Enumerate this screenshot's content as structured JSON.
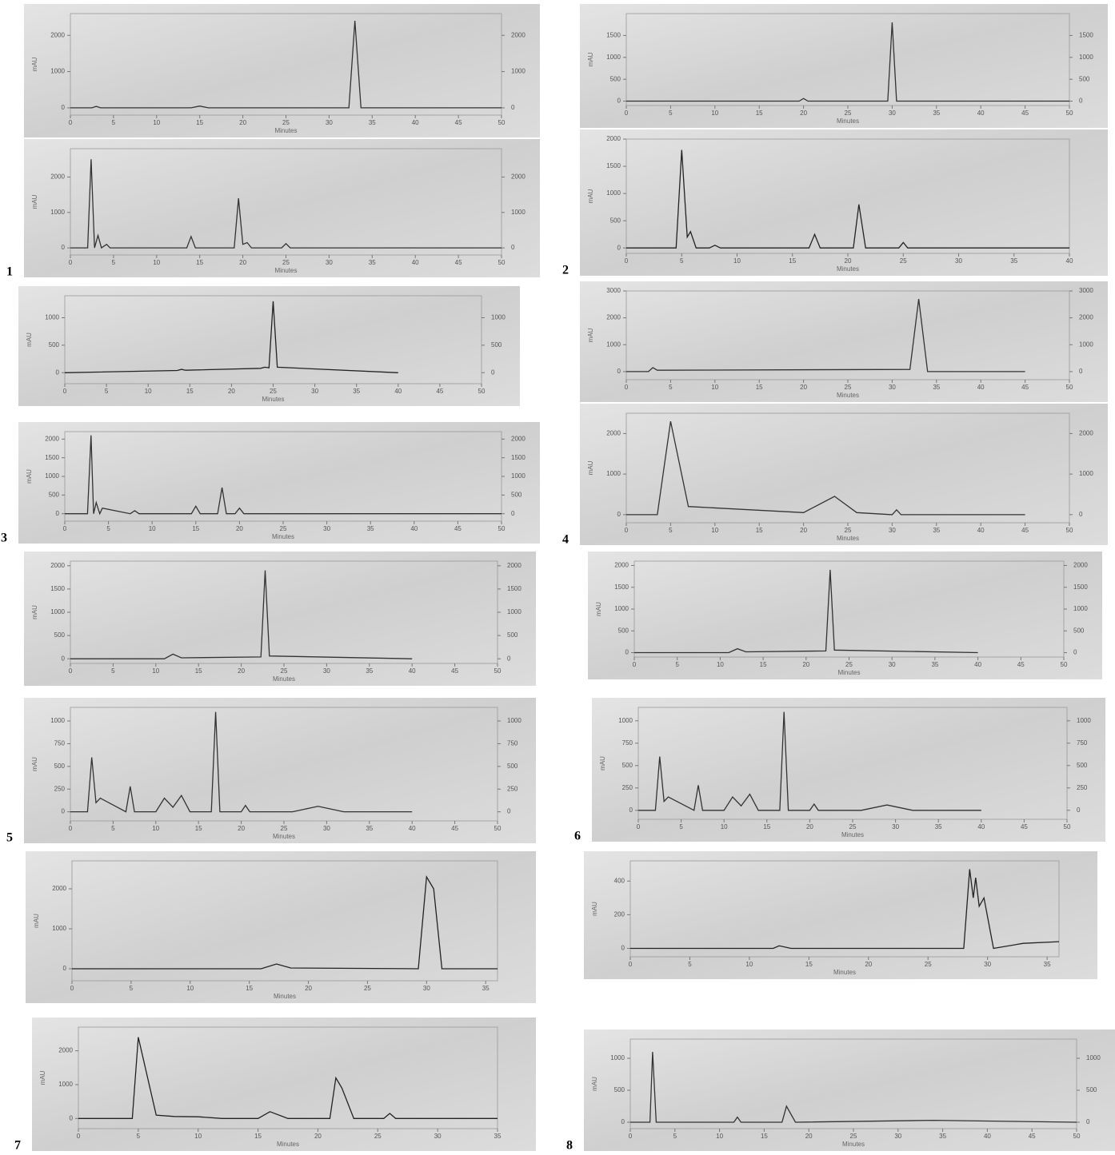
{
  "chart_data": [
    {
      "type": "line",
      "color": "#333",
      "right_axis": true,
      "xlabel": "Minutes",
      "ylabel": "mAU",
      "xlim": [
        0,
        50
      ],
      "xticks": [
        0,
        5,
        10,
        15,
        20,
        25,
        30,
        35,
        40,
        45,
        50
      ],
      "ylim": [
        -200,
        2600
      ],
      "yticks": [
        0,
        1000,
        2000
      ],
      "x": [
        0,
        2.5,
        3,
        3.5,
        14,
        15,
        16,
        32.3,
        33,
        33.7,
        50
      ],
      "values": [
        0,
        0,
        40,
        0,
        0,
        50,
        0,
        0,
        2400,
        0,
        0
      ]
    },
    {
      "type": "line",
      "color": "#333",
      "right_axis": true,
      "label": "1",
      "xlabel": "Minutes",
      "ylabel": "mAU",
      "xlim": [
        0,
        50
      ],
      "xticks": [
        0,
        5,
        10,
        15,
        20,
        25,
        30,
        35,
        40,
        45,
        50
      ],
      "ylim": [
        -200,
        2800
      ],
      "yticks": [
        0,
        1000,
        2000
      ],
      "x": [
        0,
        2,
        2.4,
        2.8,
        3.2,
        3.6,
        4.2,
        4.6,
        5,
        13.5,
        14,
        14.5,
        19,
        19.5,
        20,
        20.5,
        21,
        24.5,
        25,
        25.5,
        50
      ],
      "values": [
        0,
        0,
        2500,
        0,
        350,
        0,
        100,
        0,
        0,
        0,
        320,
        0,
        0,
        1400,
        100,
        150,
        0,
        0,
        120,
        0,
        0
      ]
    },
    {
      "type": "line",
      "color": "#333",
      "right_axis": true,
      "xlabel": "Minutes",
      "ylabel": "mAU",
      "xlim": [
        0,
        50
      ],
      "xticks": [
        0,
        5,
        10,
        15,
        20,
        25,
        30,
        35,
        40,
        45,
        50
      ],
      "ylim": [
        -100,
        2000
      ],
      "yticks": [
        0,
        500,
        1000,
        1500
      ],
      "x": [
        0,
        19.5,
        20,
        20.5,
        29.5,
        30,
        30.5,
        50
      ],
      "values": [
        0,
        0,
        60,
        0,
        0,
        1800,
        0,
        0
      ]
    },
    {
      "type": "line",
      "color": "#222",
      "label": "2",
      "xlabel": "Minutes",
      "ylabel": "mAU",
      "xlim": [
        0,
        40
      ],
      "xticks": [
        0,
        5,
        10,
        15,
        20,
        25,
        30,
        35,
        40
      ],
      "ylim": [
        -100,
        2000
      ],
      "yticks": [
        0,
        500,
        1000,
        1500,
        2000
      ],
      "x": [
        0,
        4.5,
        5,
        5.5,
        5.8,
        6.3,
        7.5,
        8,
        8.5,
        16.5,
        17,
        17.5,
        20.5,
        21,
        21.6,
        24.6,
        25,
        25.4,
        40
      ],
      "values": [
        0,
        0,
        1800,
        200,
        300,
        0,
        0,
        50,
        0,
        0,
        250,
        0,
        0,
        800,
        0,
        0,
        100,
        0,
        0
      ]
    },
    {
      "type": "line",
      "color": "#222",
      "right_axis": true,
      "xlabel": "Minutes",
      "ylabel": "mAU",
      "xlim": [
        0,
        50
      ],
      "xticks": [
        0,
        5,
        10,
        15,
        20,
        25,
        30,
        35,
        40,
        45,
        50
      ],
      "ylim": [
        -200,
        1400
      ],
      "yticks": [
        0,
        500,
        1000
      ],
      "x": [
        0,
        13.5,
        14,
        14.5,
        23.5,
        24,
        24.5,
        25,
        25.5,
        40
      ],
      "values": [
        0,
        40,
        60,
        45,
        80,
        100,
        90,
        1300,
        100,
        0
      ]
    },
    {
      "type": "line",
      "color": "#333",
      "right_axis": true,
      "label": "3",
      "xlabel": "Minutes",
      "ylabel": "mAU",
      "xlim": [
        0,
        50
      ],
      "xticks": [
        0,
        5,
        10,
        15,
        20,
        25,
        30,
        35,
        40,
        45,
        50
      ],
      "ylim": [
        -200,
        2200
      ],
      "yticks": [
        0,
        500,
        1000,
        1500,
        2000
      ],
      "x": [
        0,
        2.6,
        3,
        3.3,
        3.6,
        4,
        4.3,
        7.5,
        8,
        8.5,
        14.5,
        15,
        15.5,
        17.5,
        18,
        18.5,
        19.5,
        20,
        20.5,
        50
      ],
      "values": [
        0,
        0,
        2100,
        0,
        300,
        0,
        150,
        0,
        80,
        0,
        0,
        200,
        0,
        0,
        700,
        0,
        0,
        150,
        0,
        0
      ]
    },
    {
      "type": "line",
      "color": "#333",
      "right_axis": true,
      "xlabel": "Minutes",
      "ylabel": "mAU",
      "xlim": [
        0,
        50
      ],
      "xticks": [
        0,
        5,
        10,
        15,
        20,
        25,
        30,
        35,
        40,
        45,
        50
      ],
      "ylim": [
        -300,
        3000
      ],
      "yticks": [
        0,
        1000,
        2000,
        3000
      ],
      "x": [
        0,
        2.5,
        3,
        3.5,
        32,
        33,
        34,
        45
      ],
      "values": [
        0,
        0,
        150,
        50,
        80,
        2700,
        0,
        0
      ]
    },
    {
      "type": "line",
      "color": "#333",
      "right_axis": true,
      "label": "4",
      "xlabel": "Minutes",
      "ylabel": "mAU",
      "xlim": [
        0,
        50
      ],
      "xticks": [
        0,
        5,
        10,
        15,
        20,
        25,
        30,
        35,
        40,
        45,
        50
      ],
      "ylim": [
        -200,
        2500
      ],
      "yticks": [
        0,
        1000,
        2000
      ],
      "x": [
        0,
        3.5,
        5,
        7,
        20,
        23.5,
        26,
        30,
        30.5,
        31,
        45
      ],
      "values": [
        0,
        0,
        2300,
        200,
        50,
        450,
        50,
        0,
        120,
        0,
        0
      ]
    },
    {
      "type": "line",
      "color": "#333",
      "right_axis": true,
      "xlabel": "Minutes",
      "ylabel": "mAU",
      "xlim": [
        0,
        50
      ],
      "xticks": [
        0,
        5,
        10,
        15,
        20,
        25,
        30,
        35,
        40,
        45,
        50
      ],
      "ylim": [
        -100,
        2100
      ],
      "yticks": [
        0,
        500,
        1000,
        1500,
        2000
      ],
      "x": [
        0,
        11,
        12,
        13,
        22.3,
        22.8,
        23.3,
        40
      ],
      "values": [
        0,
        0,
        100,
        20,
        40,
        1900,
        60,
        0
      ]
    },
    {
      "type": "line",
      "color": "#333",
      "right_axis": true,
      "label": "5",
      "xlabel": "Minutes",
      "ylabel": "mAU",
      "xlim": [
        0,
        50
      ],
      "xticks": [
        0,
        5,
        10,
        15,
        20,
        25,
        30,
        35,
        40,
        45,
        50
      ],
      "ylim": [
        -100,
        1150
      ],
      "yticks": [
        0,
        250,
        500,
        750,
        1000
      ],
      "x": [
        0,
        2,
        2.5,
        3,
        3.5,
        6.5,
        7,
        7.5,
        10,
        11,
        12,
        13,
        14,
        16.5,
        17,
        17.5,
        20,
        20.5,
        21,
        26,
        29,
        32,
        40
      ],
      "values": [
        0,
        0,
        600,
        100,
        150,
        0,
        280,
        0,
        0,
        150,
        50,
        180,
        0,
        0,
        1100,
        0,
        0,
        70,
        0,
        0,
        60,
        0,
        0
      ]
    },
    {
      "type": "line",
      "color": "#333",
      "right_axis": true,
      "xlabel": "Minutes",
      "ylabel": "mAU",
      "xlim": [
        0,
        50
      ],
      "xticks": [
        0,
        5,
        10,
        15,
        20,
        25,
        30,
        35,
        40,
        45,
        50
      ],
      "ylim": [
        -100,
        2100
      ],
      "yticks": [
        0,
        500,
        1000,
        1500,
        2000
      ],
      "x": [
        0,
        11,
        12,
        13,
        22.3,
        22.8,
        23.3,
        40
      ],
      "values": [
        0,
        0,
        90,
        20,
        40,
        1900,
        60,
        0
      ]
    },
    {
      "type": "line",
      "color": "#333",
      "right_axis": true,
      "label": "6",
      "xlabel": "Minutes",
      "ylabel": "mAU",
      "xlim": [
        0,
        50
      ],
      "xticks": [
        0,
        5,
        10,
        15,
        20,
        25,
        30,
        35,
        40,
        45,
        50
      ],
      "ylim": [
        -100,
        1150
      ],
      "yticks": [
        0,
        250,
        500,
        750,
        1000
      ],
      "x": [
        0,
        2,
        2.5,
        3,
        3.5,
        6.5,
        7,
        7.5,
        10,
        11,
        12,
        13,
        14,
        16.5,
        17,
        17.5,
        20,
        20.5,
        21,
        26,
        29,
        32,
        40
      ],
      "values": [
        0,
        0,
        600,
        100,
        150,
        0,
        280,
        0,
        0,
        150,
        50,
        180,
        0,
        0,
        1100,
        0,
        0,
        70,
        0,
        0,
        60,
        0,
        0
      ]
    },
    {
      "type": "line",
      "color": "#222",
      "xlabel": "Minutes",
      "ylabel": "mAU",
      "xlim": [
        0,
        36
      ],
      "xticks": [
        0,
        5,
        10,
        15,
        20,
        25,
        30,
        35
      ],
      "ylim": [
        -300,
        2700
      ],
      "yticks": [
        0,
        1000,
        2000
      ],
      "x": [
        0,
        16,
        17.3,
        18.5,
        29.3,
        30,
        30.6,
        31.3,
        36
      ],
      "values": [
        0,
        0,
        120,
        20,
        0,
        2300,
        2000,
        0,
        0
      ]
    },
    {
      "type": "line",
      "color": "#222",
      "label": "7",
      "xlabel": "Minutes",
      "ylabel": "mAU",
      "xlim": [
        0,
        35
      ],
      "xticks": [
        0,
        5,
        10,
        15,
        20,
        25,
        30,
        35
      ],
      "ylim": [
        -300,
        2700
      ],
      "yticks": [
        0,
        1000,
        2000
      ],
      "x": [
        0,
        4.5,
        5,
        6.5,
        8,
        10,
        12,
        15,
        16,
        17.5,
        21,
        21.5,
        22,
        23,
        25.5,
        26,
        26.5,
        35
      ],
      "values": [
        0,
        0,
        2400,
        100,
        60,
        50,
        0,
        0,
        200,
        0,
        0,
        1200,
        900,
        0,
        0,
        150,
        0,
        0
      ]
    },
    {
      "type": "line",
      "color": "#222",
      "xlabel": "Minutes",
      "ylabel": "mAU",
      "xlim": [
        0,
        36
      ],
      "xticks": [
        0,
        5,
        10,
        15,
        20,
        25,
        30,
        35
      ],
      "ylim": [
        -50,
        520
      ],
      "yticks": [
        0,
        200,
        400
      ],
      "x": [
        0,
        12,
        12.5,
        13.5,
        28,
        28.5,
        28.8,
        29,
        29.3,
        29.7,
        30.5,
        33,
        36
      ],
      "values": [
        0,
        0,
        15,
        0,
        0,
        470,
        300,
        420,
        250,
        300,
        0,
        30,
        40
      ]
    },
    {
      "type": "line",
      "color": "#333",
      "right_axis": true,
      "label": "8",
      "xlabel": "Minutes",
      "ylabel": "mAU",
      "xlim": [
        0,
        50
      ],
      "xticks": [
        0,
        5,
        10,
        15,
        20,
        25,
        30,
        35,
        40,
        45,
        50
      ],
      "ylim": [
        -100,
        1300
      ],
      "yticks": [
        0,
        500,
        1000
      ],
      "x": [
        0,
        2.2,
        2.5,
        2.9,
        11.6,
        12,
        12.4,
        17,
        17.5,
        18.5,
        34,
        50
      ],
      "values": [
        0,
        0,
        1100,
        0,
        0,
        80,
        0,
        0,
        250,
        0,
        30,
        0
      ]
    }
  ]
}
